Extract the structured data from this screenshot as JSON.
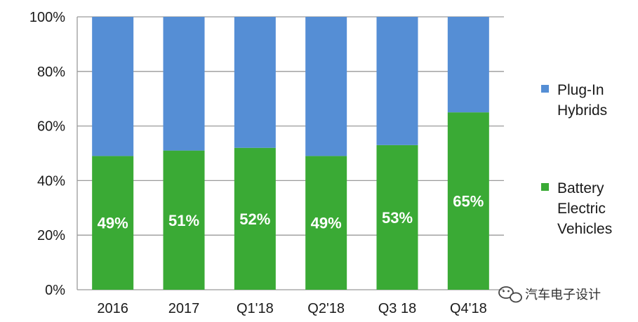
{
  "chart_data": {
    "type": "bar",
    "stacked": true,
    "percent": true,
    "categories": [
      "2016",
      "2017",
      "Q1'18",
      "Q2'18",
      "Q3 18",
      "Q4'18"
    ],
    "series": [
      {
        "name": "Battery Electric Vehicles",
        "legend_lines": [
          "Battery",
          "Electric",
          "Vehicles"
        ],
        "color": "#3aaa35",
        "values": [
          49,
          51,
          52,
          49,
          53,
          65
        ],
        "labels": [
          "49%",
          "51%",
          "52%",
          "49%",
          "53%",
          "65%"
        ]
      },
      {
        "name": "Plug-In Hybrids",
        "legend_lines": [
          "Plug-In",
          "Hybrids"
        ],
        "color": "#558ed5",
        "values": [
          51,
          49,
          48,
          51,
          47,
          35
        ]
      }
    ],
    "ylim": [
      0,
      100
    ],
    "yticks": [
      "0%",
      "20%",
      "40%",
      "60%",
      "80%",
      "100%"
    ],
    "grid": true,
    "legend_position": "right"
  },
  "watermark": {
    "text": "汽车电子设计",
    "icon": "wechat-icon"
  }
}
